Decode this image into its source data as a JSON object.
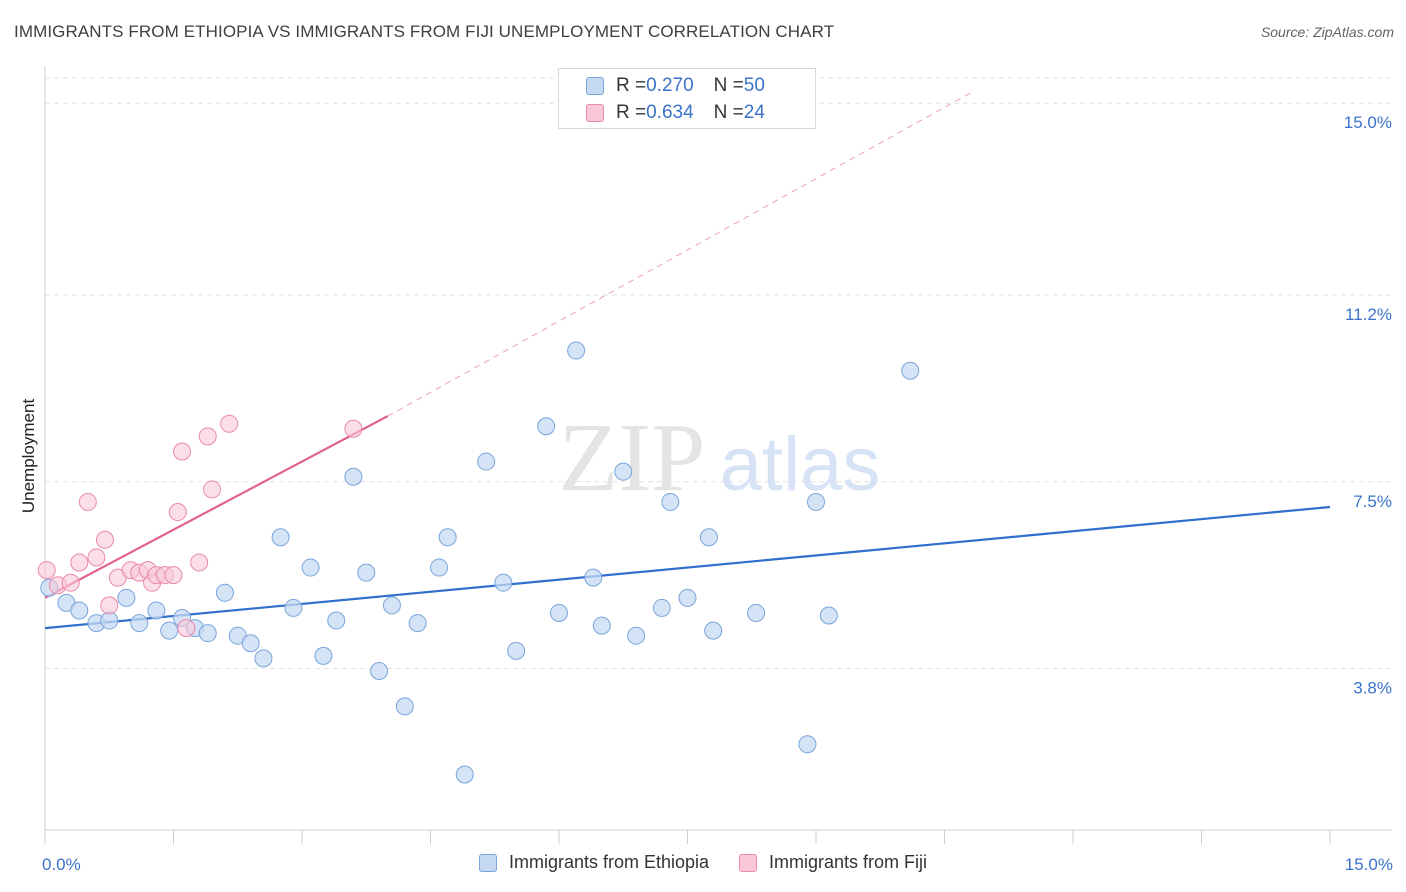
{
  "title": "IMMIGRANTS FROM ETHIOPIA VS IMMIGRANTS FROM FIJI UNEMPLOYMENT CORRELATION CHART",
  "source": "Source: ZipAtlas.com",
  "watermark": {
    "zip": "ZIP",
    "atlas": "atlas"
  },
  "legend": {
    "rows": [
      {
        "r_label": "R = ",
        "r_value": "0.270",
        "n_label": "N = ",
        "n_value": "50"
      },
      {
        "r_label": "R = ",
        "r_value": "0.634",
        "n_label": "N = ",
        "n_value": "24"
      }
    ]
  },
  "bottom_legend": {
    "ethiopia": "Immigrants from Ethiopia",
    "fiji": "Immigrants from Fiji"
  },
  "chart_data": {
    "type": "scatter",
    "title": "IMMIGRANTS FROM ETHIOPIA VS IMMIGRANTS FROM FIJI UNEMPLOYMENT CORRELATION CHART",
    "xlabel": "",
    "ylabel": "Unemployment",
    "xlim": [
      0,
      15
    ],
    "ylim": [
      0.6,
      15.5
    ],
    "x_tick_labels": [
      {
        "value": 0,
        "label": "0.0%"
      },
      {
        "value": 15,
        "label": "15.0%"
      }
    ],
    "y_ticks": [
      {
        "value": 3.8,
        "label": "3.8%"
      },
      {
        "value": 7.5,
        "label": "7.5%"
      },
      {
        "value": 11.2,
        "label": "11.2%"
      },
      {
        "value": 15.0,
        "label": "15.0%"
      }
    ],
    "grid": true,
    "colors": {
      "ethiopia_fill": "#c5d9f2",
      "ethiopia_stroke": "#7aa5dc",
      "ethiopia_line": "#2f6fcd",
      "fiji_fill": "#f9c8d8",
      "fiji_stroke": "#e98aab",
      "fiji_line": "#e0628f",
      "tick_text": "#3b73c9",
      "grid": "#e2e2e2"
    },
    "series": [
      {
        "name": "Immigrants from Ethiopia",
        "R": 0.27,
        "N": 50,
        "trend": {
          "x0": 0,
          "y0": 4.6,
          "x1": 15,
          "y1": 7.0
        },
        "points": [
          [
            0.05,
            5.4
          ],
          [
            0.25,
            5.1
          ],
          [
            0.4,
            4.95
          ],
          [
            0.6,
            4.7
          ],
          [
            0.75,
            4.75
          ],
          [
            0.95,
            5.2
          ],
          [
            1.1,
            4.7
          ],
          [
            1.3,
            4.95
          ],
          [
            1.45,
            4.55
          ],
          [
            1.6,
            4.8
          ],
          [
            1.75,
            4.6
          ],
          [
            1.9,
            4.5
          ],
          [
            2.1,
            5.3
          ],
          [
            2.25,
            4.45
          ],
          [
            2.4,
            4.3
          ],
          [
            2.55,
            4.0
          ],
          [
            2.75,
            6.4
          ],
          [
            2.9,
            5.0
          ],
          [
            3.1,
            5.8
          ],
          [
            3.25,
            4.05
          ],
          [
            3.4,
            4.75
          ],
          [
            3.6,
            7.6
          ],
          [
            3.75,
            5.7
          ],
          [
            3.9,
            3.75
          ],
          [
            4.05,
            5.05
          ],
          [
            4.2,
            3.05
          ],
          [
            4.35,
            4.7
          ],
          [
            4.6,
            5.8
          ],
          [
            4.7,
            6.4
          ],
          [
            4.9,
            1.7
          ],
          [
            5.15,
            7.9
          ],
          [
            5.35,
            5.5
          ],
          [
            5.5,
            4.15
          ],
          [
            5.85,
            8.6
          ],
          [
            6.0,
            4.9
          ],
          [
            6.2,
            10.1
          ],
          [
            6.4,
            5.6
          ],
          [
            6.5,
            4.65
          ],
          [
            6.75,
            7.7
          ],
          [
            6.9,
            4.45
          ],
          [
            7.2,
            5.0
          ],
          [
            7.3,
            7.1
          ],
          [
            7.5,
            5.2
          ],
          [
            7.75,
            6.4
          ],
          [
            7.8,
            4.55
          ],
          [
            8.3,
            4.9
          ],
          [
            8.9,
            2.3
          ],
          [
            9.0,
            7.1
          ],
          [
            9.15,
            4.85
          ],
          [
            10.1,
            9.7
          ]
        ]
      },
      {
        "name": "Immigrants from Fiji",
        "R": 0.634,
        "N": 24,
        "trend": {
          "x0": 0,
          "y0": 5.2,
          "x1": 4.0,
          "y1": 8.8
        },
        "trend_dashed_to": {
          "x": 10.8,
          "y": 15.2
        },
        "points": [
          [
            0.02,
            5.75
          ],
          [
            0.15,
            5.45
          ],
          [
            0.3,
            5.5
          ],
          [
            0.4,
            5.9
          ],
          [
            0.5,
            7.1
          ],
          [
            0.6,
            6.0
          ],
          [
            0.7,
            6.35
          ],
          [
            0.75,
            5.05
          ],
          [
            0.85,
            5.6
          ],
          [
            1.0,
            5.75
          ],
          [
            1.1,
            5.7
          ],
          [
            1.2,
            5.75
          ],
          [
            1.25,
            5.5
          ],
          [
            1.3,
            5.65
          ],
          [
            1.4,
            5.65
          ],
          [
            1.5,
            5.65
          ],
          [
            1.55,
            6.9
          ],
          [
            1.6,
            8.1
          ],
          [
            1.65,
            4.6
          ],
          [
            1.8,
            5.9
          ],
          [
            1.9,
            8.4
          ],
          [
            1.95,
            7.35
          ],
          [
            2.15,
            8.65
          ],
          [
            3.6,
            8.55
          ]
        ]
      }
    ]
  }
}
